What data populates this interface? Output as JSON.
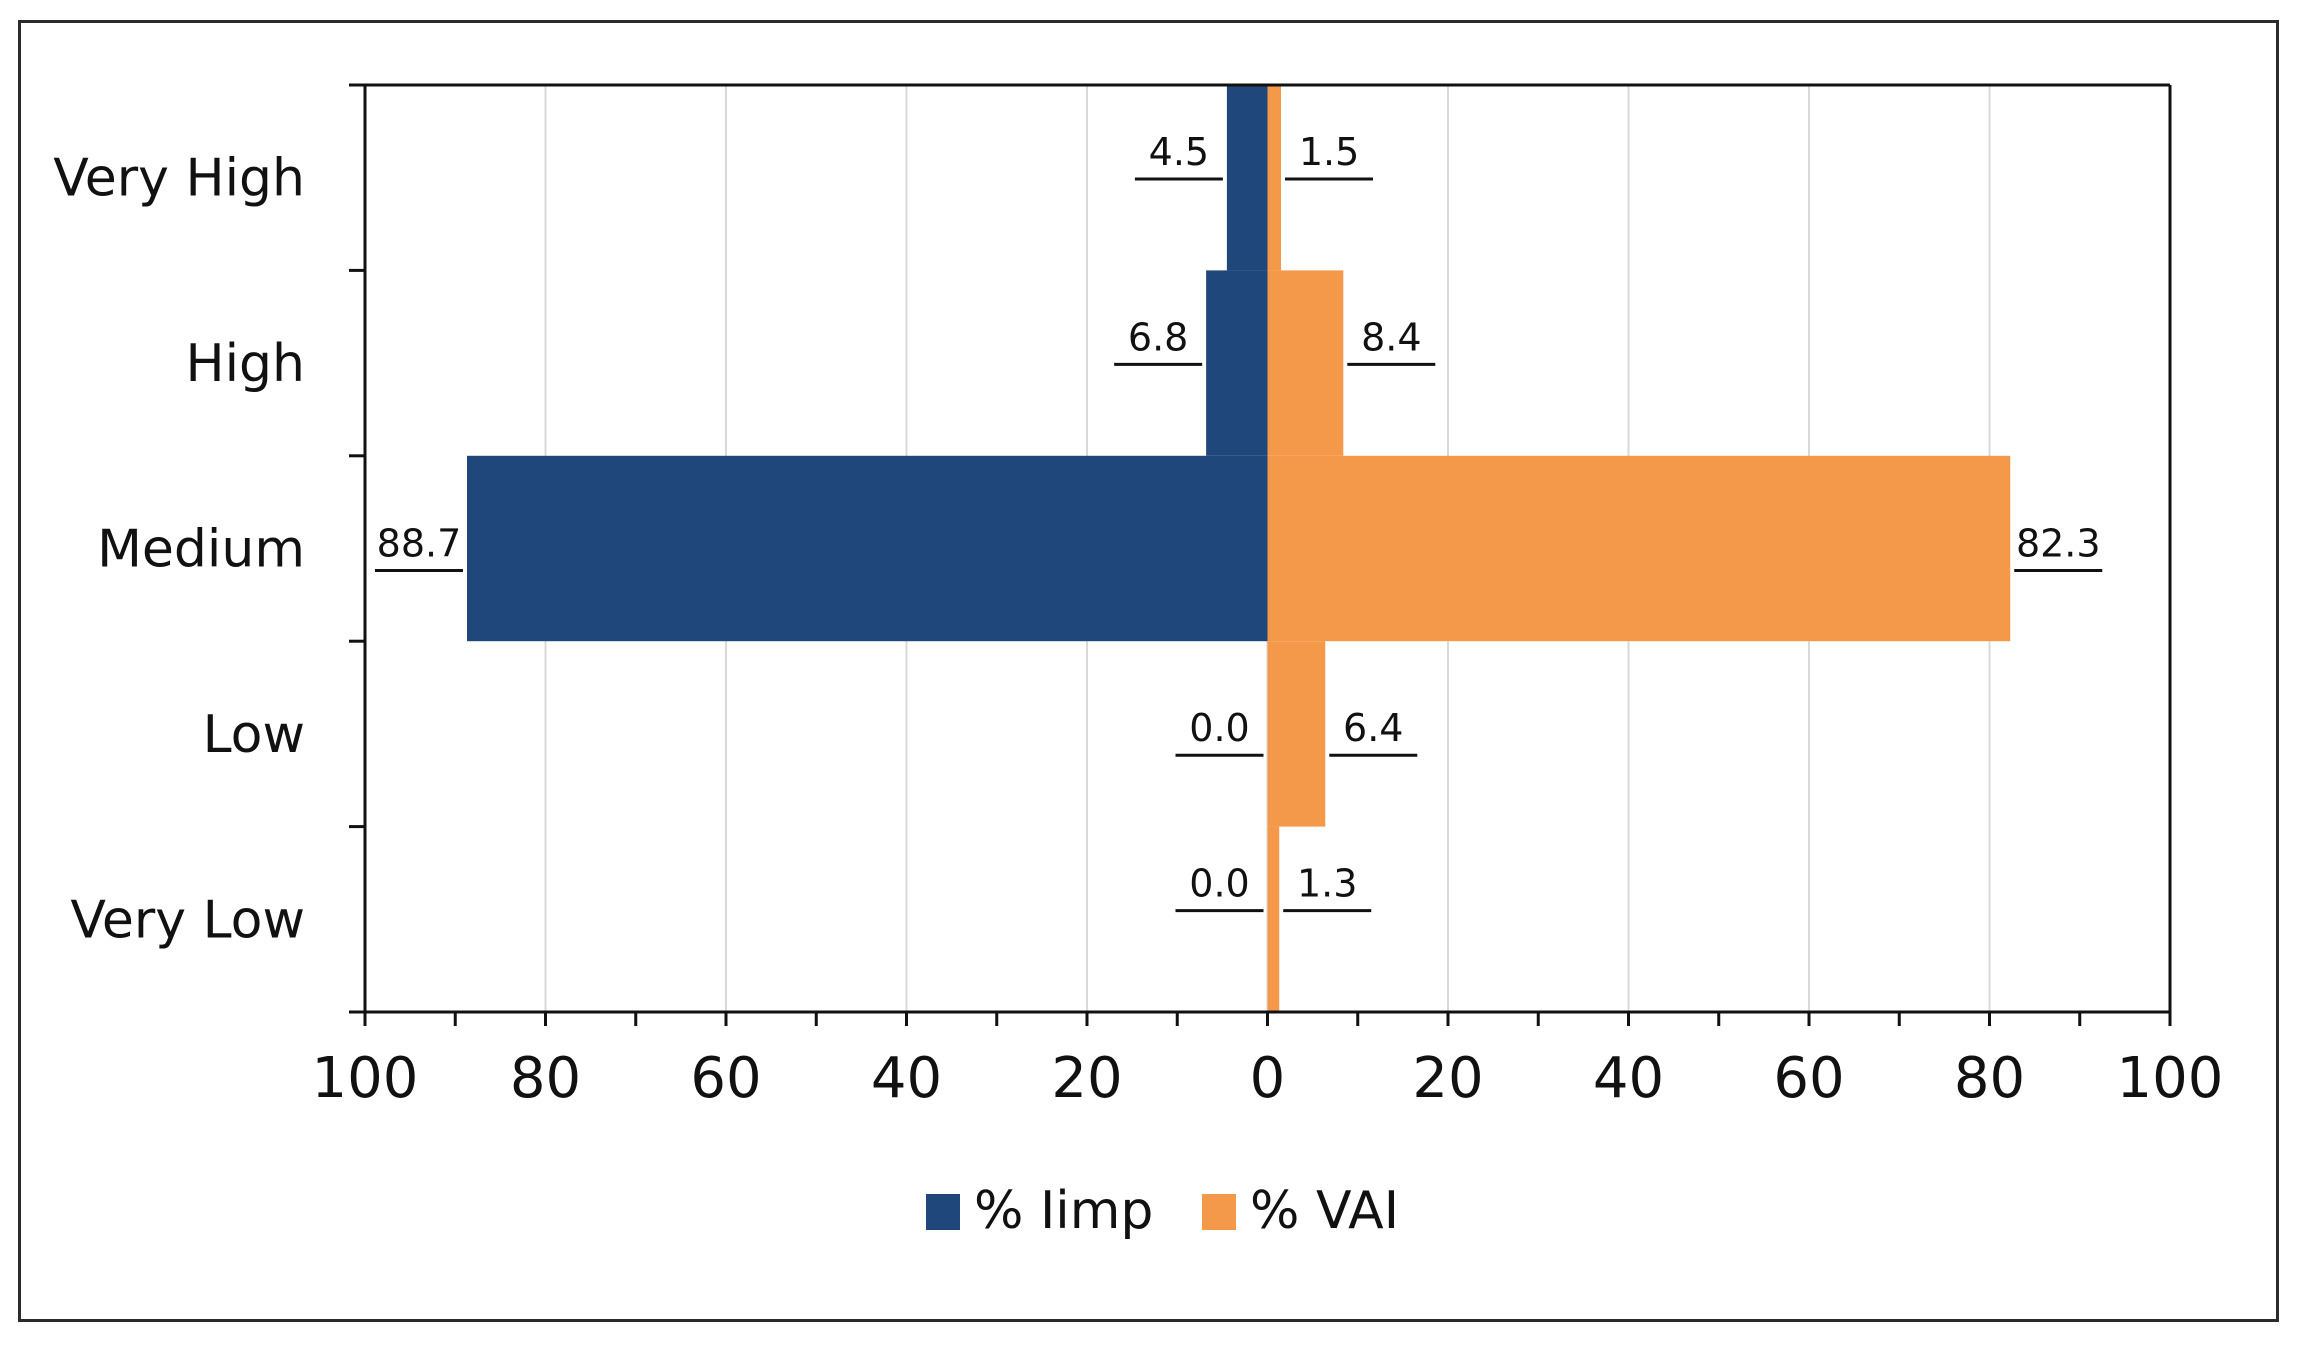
{
  "chart_data": {
    "type": "bar",
    "orientation": "horizontal-diverging",
    "categories": [
      "Very High",
      "High",
      "Medium",
      "Low",
      "Very Low"
    ],
    "series": [
      {
        "name": "% Iimp",
        "values": [
          4.5,
          6.8,
          88.7,
          0.0,
          0.0
        ],
        "side": "left",
        "color": "#1f477b"
      },
      {
        "name": "% VAI",
        "values": [
          1.5,
          8.4,
          82.3,
          6.4,
          1.3
        ],
        "side": "right",
        "color": "#f4984a"
      }
    ],
    "xlim": [
      -100,
      100
    ],
    "x_ticks": [
      100,
      80,
      60,
      40,
      20,
      0,
      20,
      40,
      60,
      80,
      100
    ],
    "data_labels": {
      "left": [
        "4.5",
        "6.8",
        "88.7",
        "0.0",
        "0.0"
      ],
      "right": [
        "1.5",
        "8.4",
        "82.3",
        "6.4",
        "1.3"
      ]
    },
    "grid": "vertical",
    "legend_position": "bottom",
    "title": "",
    "xlabel": "",
    "ylabel": ""
  }
}
